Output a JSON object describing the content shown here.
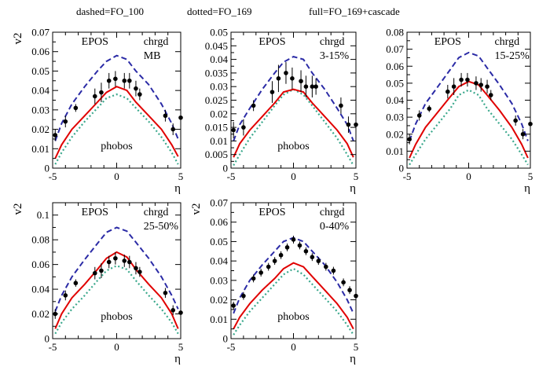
{
  "legend": [
    "dashed=FO_100",
    "dotted=FO_169",
    "full=FO_169+cascade"
  ],
  "colors": {
    "dashed": "#2b2ba6",
    "dotted": "#3aa88c",
    "full": "#e00000",
    "data": "#000000"
  },
  "chart_data": [
    {
      "type": "line",
      "label_model": "EPOS",
      "label_particle": "chrgd",
      "label_centrality": "MB",
      "label_data": "phobos",
      "xlabel": "η",
      "ylabel": "v2",
      "xlim": [
        -5,
        5
      ],
      "ylim": [
        0,
        0.07
      ],
      "xticks": [
        -5,
        0,
        5
      ],
      "yticks": [
        0,
        0.01,
        0.02,
        0.03,
        0.04,
        0.05,
        0.06,
        0.07
      ],
      "ytick_labels": [
        "0",
        "0.01",
        "0.02",
        "0.03",
        "0.04",
        "0.05",
        "0.06",
        "0.07"
      ],
      "series": [
        {
          "style": "dashed",
          "x": [
            -4.8,
            -4.3,
            -3.5,
            -2.5,
            -1.5,
            -0.8,
            0,
            0.8,
            1.5,
            2.5,
            3.5,
            4.3,
            4.8
          ],
          "y": [
            0.014,
            0.023,
            0.033,
            0.042,
            0.05,
            0.055,
            0.058,
            0.056,
            0.05,
            0.043,
            0.033,
            0.023,
            0.015
          ]
        },
        {
          "style": "dotted",
          "x": [
            -4.8,
            -4.3,
            -3.5,
            -2.5,
            -1.5,
            -0.8,
            0,
            0.8,
            1.5,
            2.5,
            3.5,
            4.3,
            4.8
          ],
          "y": [
            0.002,
            0.008,
            0.016,
            0.024,
            0.031,
            0.036,
            0.038,
            0.036,
            0.031,
            0.024,
            0.016,
            0.008,
            0.002
          ]
        },
        {
          "style": "full",
          "x": [
            -4.8,
            -4.3,
            -3.5,
            -2.5,
            -1.5,
            -0.8,
            0,
            0.8,
            1.5,
            2.5,
            3.5,
            4.3,
            4.8
          ],
          "y": [
            0.005,
            0.012,
            0.02,
            0.027,
            0.034,
            0.039,
            0.042,
            0.04,
            0.034,
            0.027,
            0.02,
            0.012,
            0.006
          ]
        },
        {
          "style": "data",
          "x": [
            -4.8,
            -4.0,
            -3.2,
            -1.7,
            -1.2,
            -0.6,
            -0.1,
            0.6,
            1.0,
            1.5,
            1.8,
            3.8,
            4.4,
            5.0
          ],
          "y": [
            0.017,
            0.024,
            0.031,
            0.037,
            0.039,
            0.045,
            0.046,
            0.045,
            0.045,
            0.041,
            0.038,
            0.027,
            0.02,
            0.026
          ],
          "err": [
            0.003,
            0.003,
            0.002,
            0.004,
            0.005,
            0.004,
            0.004,
            0.004,
            0.004,
            0.004,
            0.003,
            0.003,
            0.003,
            0.004
          ]
        }
      ]
    },
    {
      "type": "line",
      "label_model": "EPOS",
      "label_particle": "chrgd",
      "label_centrality": "3-15%",
      "label_data": "phobos",
      "xlabel": "η",
      "ylabel": "",
      "xlim": [
        -5,
        5
      ],
      "ylim": [
        0,
        0.05
      ],
      "xticks": [
        -5,
        0,
        5
      ],
      "yticks": [
        0,
        0.005,
        0.01,
        0.015,
        0.02,
        0.025,
        0.03,
        0.035,
        0.04,
        0.045,
        0.05
      ],
      "ytick_labels": [
        "0",
        "0.005",
        "0.01",
        "0.015",
        "0.02",
        "0.025",
        "0.03",
        "0.035",
        "0.04",
        "0.045",
        "0.05"
      ],
      "series": [
        {
          "style": "dashed",
          "x": [
            -4.8,
            -4.3,
            -3.5,
            -2.5,
            -1.5,
            -0.8,
            0,
            0.8,
            1.5,
            2.5,
            3.5,
            4.3,
            4.8
          ],
          "y": [
            0.01,
            0.016,
            0.022,
            0.029,
            0.035,
            0.039,
            0.041,
            0.04,
            0.035,
            0.029,
            0.022,
            0.016,
            0.01
          ]
        },
        {
          "style": "dotted",
          "x": [
            -4.8,
            -4.3,
            -3.5,
            -2.5,
            -1.5,
            -0.8,
            0,
            0.8,
            1.5,
            2.5,
            3.5,
            4.3,
            4.8
          ],
          "y": [
            0.001,
            0.005,
            0.011,
            0.017,
            0.023,
            0.027,
            0.029,
            0.027,
            0.023,
            0.017,
            0.011,
            0.005,
            0.001
          ]
        },
        {
          "style": "full",
          "x": [
            -4.8,
            -4.3,
            -3.5,
            -2.5,
            -1.5,
            -0.8,
            0,
            0.8,
            1.5,
            2.5,
            3.5,
            4.3,
            4.8
          ],
          "y": [
            0.004,
            0.009,
            0.014,
            0.019,
            0.024,
            0.028,
            0.029,
            0.028,
            0.024,
            0.019,
            0.014,
            0.009,
            0.004
          ]
        },
        {
          "style": "data",
          "x": [
            -4.8,
            -4.0,
            -3.2,
            -1.7,
            -1.2,
            -0.6,
            -0.1,
            0.6,
            1.0,
            1.5,
            1.8,
            3.8,
            4.4,
            5.0
          ],
          "y": [
            0.014,
            0.015,
            0.023,
            0.028,
            0.033,
            0.035,
            0.033,
            0.032,
            0.03,
            0.03,
            0.03,
            0.023,
            0.016,
            0.016
          ],
          "err": [
            0.003,
            0.003,
            0.002,
            0.004,
            0.005,
            0.004,
            0.004,
            0.004,
            0.004,
            0.004,
            0.003,
            0.003,
            0.003,
            0.004
          ]
        }
      ]
    },
    {
      "type": "line",
      "label_model": "EPOS",
      "label_particle": "chrgd",
      "label_centrality": "15-25%",
      "label_data": "",
      "xlabel": "η",
      "ylabel": "",
      "xlim": [
        -5,
        5
      ],
      "ylim": [
        0,
        0.08
      ],
      "xticks": [
        -5,
        0,
        5
      ],
      "yticks": [
        0,
        0.01,
        0.02,
        0.03,
        0.04,
        0.05,
        0.06,
        0.07,
        0.08
      ],
      "ytick_labels": [
        "0",
        "0.01",
        "0.02",
        "0.03",
        "0.04",
        "0.05",
        "0.06",
        "0.07",
        "0.08"
      ],
      "series": [
        {
          "style": "dashed",
          "x": [
            -4.8,
            -4.3,
            -3.5,
            -2.5,
            -1.5,
            -0.8,
            0,
            0.8,
            1.5,
            2.5,
            3.5,
            4.3,
            4.8
          ],
          "y": [
            0.016,
            0.026,
            0.038,
            0.048,
            0.058,
            0.065,
            0.068,
            0.066,
            0.059,
            0.049,
            0.038,
            0.026,
            0.016
          ]
        },
        {
          "style": "dotted",
          "x": [
            -4.8,
            -4.3,
            -3.5,
            -2.5,
            -1.5,
            -0.8,
            0,
            0.8,
            1.5,
            2.5,
            3.5,
            4.3,
            4.8
          ],
          "y": [
            0.002,
            0.008,
            0.017,
            0.026,
            0.035,
            0.043,
            0.046,
            0.043,
            0.035,
            0.026,
            0.017,
            0.008,
            0.002
          ]
        },
        {
          "style": "full",
          "x": [
            -4.8,
            -4.3,
            -3.5,
            -2.5,
            -1.5,
            -0.8,
            0,
            0.8,
            1.5,
            2.5,
            3.5,
            4.3,
            4.8
          ],
          "y": [
            0.006,
            0.014,
            0.024,
            0.033,
            0.042,
            0.048,
            0.051,
            0.049,
            0.043,
            0.034,
            0.024,
            0.014,
            0.006
          ]
        },
        {
          "style": "data",
          "x": [
            -4.8,
            -4.0,
            -3.2,
            -1.7,
            -1.2,
            -0.6,
            -0.1,
            0.6,
            1.0,
            1.5,
            1.8,
            3.8,
            4.4,
            5.0
          ],
          "y": [
            0.017,
            0.031,
            0.035,
            0.045,
            0.048,
            0.052,
            0.052,
            0.05,
            0.049,
            0.048,
            0.043,
            0.028,
            0.02,
            0.026
          ],
          "err": [
            0.003,
            0.003,
            0.002,
            0.004,
            0.005,
            0.004,
            0.004,
            0.004,
            0.004,
            0.004,
            0.003,
            0.003,
            0.003,
            0.004
          ]
        }
      ]
    },
    {
      "type": "line",
      "label_model": "EPOS",
      "label_particle": "chrgd",
      "label_centrality": "25-50%",
      "label_data": "phobos",
      "xlabel": "η",
      "ylabel": "v2",
      "xlim": [
        -5,
        5
      ],
      "ylim": [
        0,
        0.11
      ],
      "xticks": [
        -5,
        0,
        5
      ],
      "yticks": [
        0,
        0.02,
        0.04,
        0.06,
        0.08,
        0.1
      ],
      "ytick_labels": [
        "0",
        "0.02",
        "0.04",
        "0.06",
        "0.08",
        "0.1"
      ],
      "series": [
        {
          "style": "dashed",
          "x": [
            -4.8,
            -4.3,
            -3.5,
            -2.5,
            -1.5,
            -0.8,
            0,
            0.8,
            1.5,
            2.5,
            3.5,
            4.3,
            4.8
          ],
          "y": [
            0.022,
            0.035,
            0.05,
            0.064,
            0.077,
            0.086,
            0.09,
            0.087,
            0.078,
            0.065,
            0.05,
            0.035,
            0.024
          ]
        },
        {
          "style": "dotted",
          "x": [
            -4.8,
            -4.3,
            -3.5,
            -2.5,
            -1.5,
            -0.8,
            0,
            0.8,
            1.5,
            2.5,
            3.5,
            4.3,
            4.8
          ],
          "y": [
            0.004,
            0.013,
            0.024,
            0.035,
            0.047,
            0.055,
            0.059,
            0.056,
            0.047,
            0.035,
            0.024,
            0.013,
            0.004
          ]
        },
        {
          "style": "full",
          "x": [
            -4.8,
            -4.3,
            -3.5,
            -2.5,
            -1.5,
            -0.8,
            0,
            0.8,
            1.5,
            2.5,
            3.5,
            4.3,
            4.8
          ],
          "y": [
            0.008,
            0.02,
            0.033,
            0.044,
            0.056,
            0.065,
            0.07,
            0.066,
            0.056,
            0.044,
            0.033,
            0.02,
            0.008
          ]
        },
        {
          "style": "data",
          "x": [
            -4.8,
            -4.0,
            -3.2,
            -1.7,
            -1.2,
            -0.6,
            -0.1,
            0.6,
            1.0,
            1.5,
            1.8,
            3.8,
            4.4,
            5.0
          ],
          "y": [
            0.02,
            0.035,
            0.045,
            0.053,
            0.055,
            0.062,
            0.065,
            0.063,
            0.062,
            0.057,
            0.054,
            0.037,
            0.023,
            0.021
          ],
          "err": [
            0.004,
            0.004,
            0.003,
            0.005,
            0.006,
            0.005,
            0.005,
            0.005,
            0.005,
            0.005,
            0.004,
            0.004,
            0.004,
            0.005
          ]
        }
      ]
    },
    {
      "type": "line",
      "label_model": "EPOS",
      "label_particle": "chrgd",
      "label_centrality": "0-40%",
      "label_data": "phobos",
      "xlabel": "η",
      "ylabel": "v2",
      "xlim": [
        -5,
        5
      ],
      "ylim": [
        0,
        0.07
      ],
      "xticks": [
        -5,
        0,
        5
      ],
      "yticks": [
        0,
        0.01,
        0.02,
        0.03,
        0.04,
        0.05,
        0.06,
        0.07
      ],
      "ytick_labels": [
        "0",
        "0.01",
        "0.02",
        "0.03",
        "0.04",
        "0.05",
        "0.06",
        "0.07"
      ],
      "series": [
        {
          "style": "dashed",
          "x": [
            -4.8,
            -4.3,
            -3.5,
            -2.5,
            -1.5,
            -0.8,
            0,
            0.8,
            1.5,
            2.5,
            3.5,
            4.3,
            4.8
          ],
          "y": [
            0.013,
            0.021,
            0.03,
            0.038,
            0.045,
            0.05,
            0.052,
            0.05,
            0.045,
            0.038,
            0.029,
            0.02,
            0.013
          ]
        },
        {
          "style": "dotted",
          "x": [
            -4.8,
            -4.3,
            -3.5,
            -2.5,
            -1.5,
            -0.8,
            0,
            0.8,
            1.5,
            2.5,
            3.5,
            4.3,
            4.8
          ],
          "y": [
            0.002,
            0.007,
            0.014,
            0.021,
            0.028,
            0.033,
            0.036,
            0.033,
            0.028,
            0.021,
            0.014,
            0.007,
            0.002
          ]
        },
        {
          "style": "full",
          "x": [
            -4.8,
            -4.3,
            -3.5,
            -2.5,
            -1.5,
            -0.8,
            0,
            0.8,
            1.5,
            2.5,
            3.5,
            4.3,
            4.8
          ],
          "y": [
            0.005,
            0.011,
            0.018,
            0.025,
            0.031,
            0.036,
            0.039,
            0.037,
            0.032,
            0.025,
            0.018,
            0.011,
            0.005
          ]
        },
        {
          "style": "data",
          "x": [
            -4.8,
            -4.0,
            -3.2,
            -2.6,
            -2.0,
            -1.5,
            -1.0,
            -0.5,
            0,
            0.5,
            1.0,
            1.5,
            2.0,
            2.6,
            3.2,
            4.0,
            4.5,
            5.0
          ],
          "y": [
            0.017,
            0.022,
            0.031,
            0.034,
            0.037,
            0.04,
            0.043,
            0.047,
            0.051,
            0.048,
            0.045,
            0.042,
            0.04,
            0.037,
            0.035,
            0.029,
            0.025,
            0.022
          ],
          "err": [
            0.002,
            0.002,
            0.002,
            0.002,
            0.002,
            0.002,
            0.002,
            0.002,
            0.002,
            0.002,
            0.002,
            0.002,
            0.002,
            0.002,
            0.002,
            0.002,
            0.002,
            0.002
          ]
        }
      ]
    }
  ]
}
